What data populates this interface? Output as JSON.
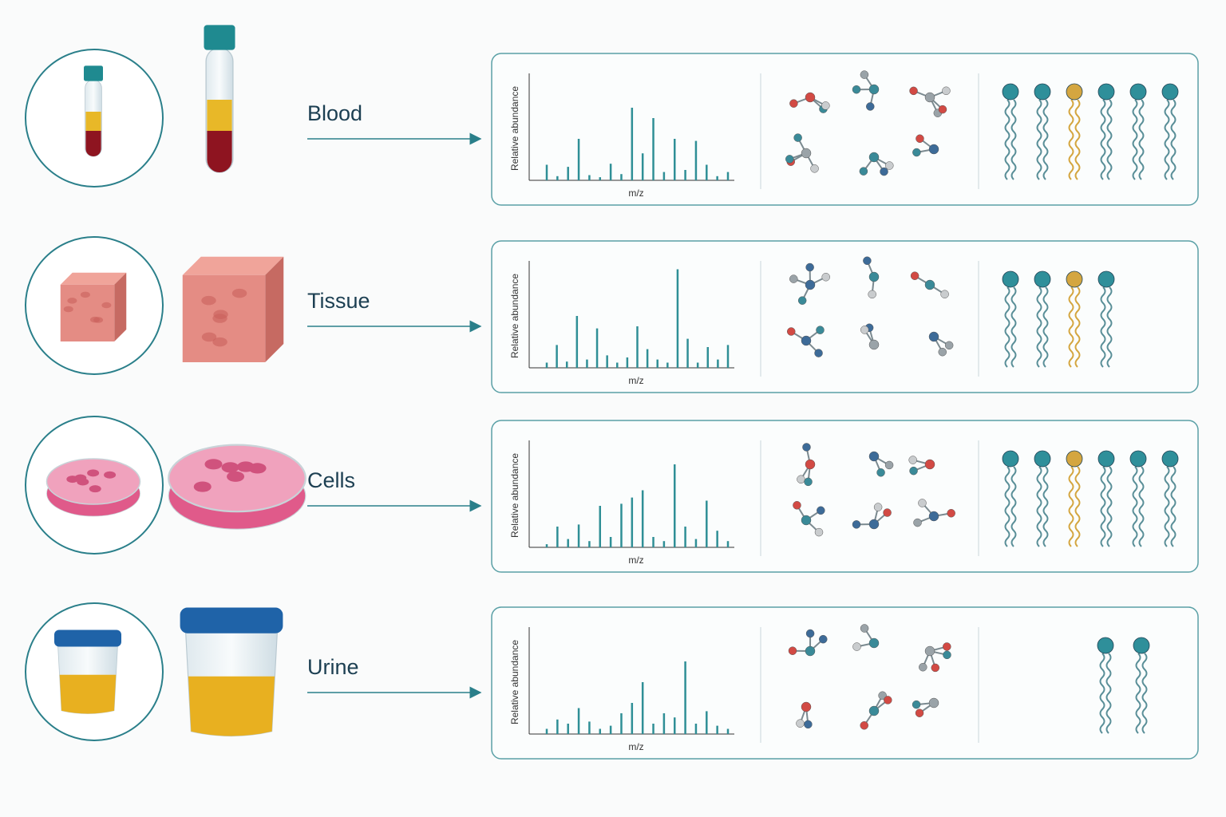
{
  "rows": [
    {
      "label": "Blood",
      "y_axis_label": "Relative abundance",
      "x_axis_label": "m/z",
      "peaks": [
        15,
        4,
        13,
        40,
        5,
        3,
        16,
        6,
        70,
        26,
        60,
        8,
        40,
        10,
        38,
        15,
        4,
        8
      ]
    },
    {
      "label": "Tissue",
      "y_axis_label": "Relative abundance",
      "x_axis_label": "m/z",
      "peaks": [
        5,
        22,
        6,
        50,
        8,
        38,
        12,
        5,
        10,
        40,
        18,
        8,
        5,
        95,
        28,
        5,
        20,
        8,
        22
      ]
    },
    {
      "label": "Cells",
      "y_axis_label": "Relative abundance",
      "x_axis_label": "m/z",
      "peaks": [
        3,
        20,
        8,
        22,
        6,
        40,
        10,
        42,
        48,
        55,
        10,
        6,
        80,
        20,
        8,
        45,
        16,
        6
      ]
    },
    {
      "label": "Urine",
      "y_axis_label": "Relative abundance",
      "x_axis_label": "m/z",
      "peaks": [
        5,
        14,
        10,
        25,
        12,
        5,
        8,
        20,
        30,
        50,
        10,
        20,
        16,
        70,
        10,
        22,
        8,
        5
      ]
    }
  ]
}
